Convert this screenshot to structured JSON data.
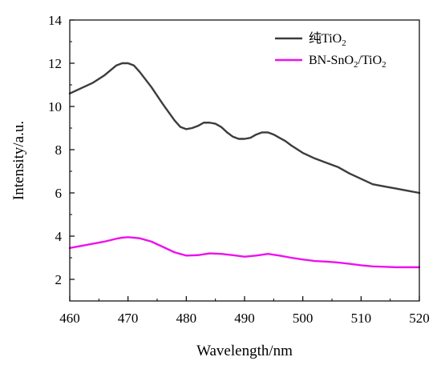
{
  "chart_data": {
    "type": "line",
    "title": "",
    "xlabel": "Wavelength/nm",
    "ylabel": "Intensity/a.u.",
    "xlim": [
      460,
      520
    ],
    "ylim": [
      1,
      14
    ],
    "xticks": [
      460,
      470,
      480,
      490,
      500,
      510,
      520
    ],
    "yticks": [
      2,
      4,
      6,
      8,
      10,
      12,
      14
    ],
    "grid": false,
    "legend_position": "top-right",
    "series": [
      {
        "name": "纯TiO₂",
        "legend_main": "纯TiO",
        "legend_sub": "2",
        "legend_tail": "",
        "color": "#3c3c3c",
        "x": [
          460,
          462,
          464,
          466,
          468,
          469,
          470,
          471,
          472,
          474,
          476,
          478,
          479,
          480,
          481,
          482,
          483,
          484,
          485,
          486,
          487,
          488,
          489,
          490,
          491,
          492,
          493,
          494,
          495,
          496,
          497,
          498,
          500,
          502,
          504,
          506,
          508,
          510,
          512,
          514,
          516,
          518,
          520
        ],
        "y": [
          10.6,
          10.85,
          11.1,
          11.45,
          11.9,
          12.0,
          12.0,
          11.9,
          11.6,
          10.9,
          10.1,
          9.35,
          9.05,
          8.95,
          9.0,
          9.1,
          9.25,
          9.25,
          9.2,
          9.05,
          8.8,
          8.6,
          8.5,
          8.5,
          8.55,
          8.7,
          8.8,
          8.8,
          8.7,
          8.55,
          8.4,
          8.2,
          7.85,
          7.6,
          7.4,
          7.2,
          6.9,
          6.65,
          6.4,
          6.3,
          6.2,
          6.1,
          6.0
        ]
      },
      {
        "name": "BN-SnO₂/TiO₂",
        "legend_main": "BN-SnO",
        "legend_sub": "2",
        "legend_tail": "/TiO",
        "legend_sub2": "2",
        "color": "#ee10ee",
        "x": [
          460,
          462,
          464,
          466,
          468,
          469,
          470,
          471,
          472,
          474,
          476,
          478,
          480,
          482,
          484,
          486,
          488,
          490,
          492,
          494,
          496,
          498,
          500,
          502,
          504,
          506,
          508,
          510,
          512,
          514,
          516,
          518,
          520
        ],
        "y": [
          3.45,
          3.55,
          3.65,
          3.75,
          3.88,
          3.93,
          3.95,
          3.93,
          3.9,
          3.75,
          3.5,
          3.25,
          3.1,
          3.12,
          3.2,
          3.18,
          3.12,
          3.05,
          3.1,
          3.18,
          3.1,
          3.0,
          2.92,
          2.85,
          2.82,
          2.78,
          2.72,
          2.65,
          2.6,
          2.58,
          2.56,
          2.56,
          2.56
        ]
      }
    ]
  }
}
